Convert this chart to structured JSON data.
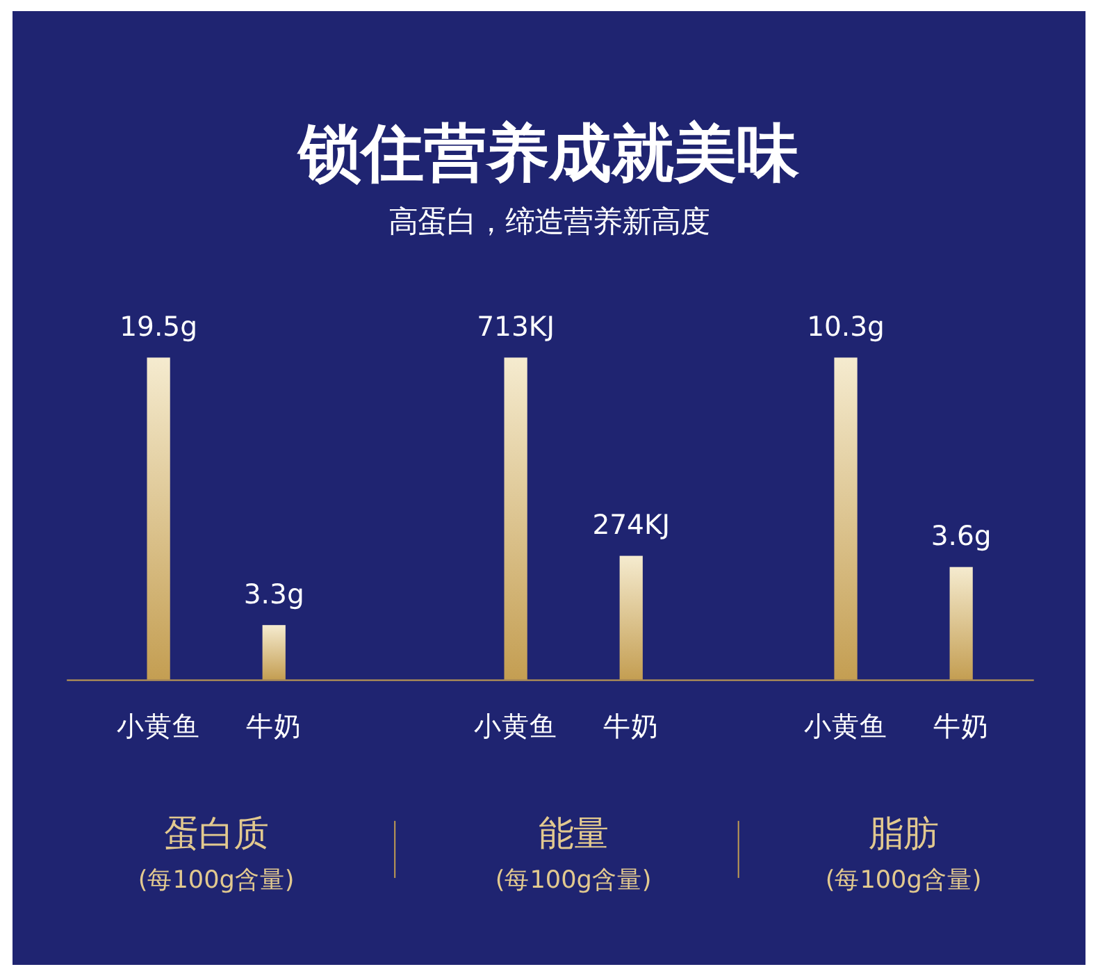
{
  "chart_data": [
    {
      "type": "other",
      "title": "锁住营养成就美味",
      "subtitle": "高蛋白，缔造营养新高度"
    },
    {
      "type": "bar",
      "xlabel": "蛋白质",
      "annotations": [
        "(每100g含量)"
      ],
      "categories": [
        "小黄鱼",
        "牛奶"
      ],
      "values": [
        19.5,
        3.3
      ],
      "value_labels": [
        "19.5g",
        "3.3g"
      ],
      "color": "#c49e52"
    },
    {
      "type": "bar",
      "xlabel": "能量",
      "annotations": [
        "(每100g含量)"
      ],
      "categories": [
        "小黄鱼",
        "牛奶"
      ],
      "values": [
        713,
        274
      ],
      "value_labels": [
        "713KJ",
        "274KJ"
      ],
      "color": "#c49e52"
    },
    {
      "type": "bar",
      "xlabel": "脂肪",
      "annotations": [
        "(每100g含量)"
      ],
      "categories": [
        "小黄鱼",
        "牛奶"
      ],
      "values": [
        10.3,
        3.6
      ],
      "value_labels": [
        "10.3g",
        "3.6g"
      ],
      "color": "#c49e52"
    }
  ]
}
